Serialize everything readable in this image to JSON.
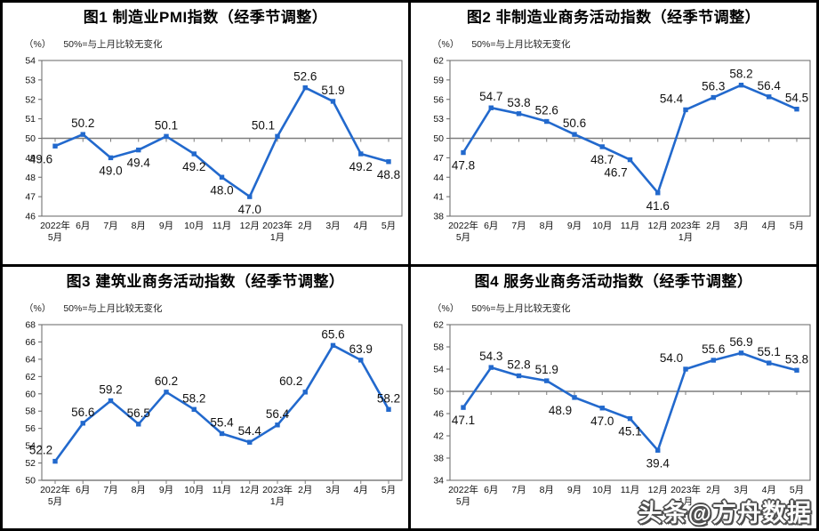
{
  "page": {
    "watermark": "头条@方舟数据"
  },
  "colors": {
    "line": "#2269cd",
    "axis": "#666666",
    "ref_line": "#7d7d7d",
    "text": "#111111"
  },
  "chart_data": [
    {
      "type": "line",
      "title": "图1 制造业PMI指数（经季节调整）",
      "unit": "（%）",
      "note": "50%=与上月比较无变化",
      "categories": [
        "2022年\n5月",
        "6月",
        "7月",
        "8月",
        "9月",
        "10月",
        "11月",
        "12月",
        "2023年\n1月",
        "2月",
        "3月",
        "4月",
        "5月"
      ],
      "values": [
        49.6,
        50.2,
        49.0,
        49.4,
        50.1,
        49.2,
        48.0,
        47.0,
        50.1,
        52.6,
        51.9,
        49.2,
        48.8
      ],
      "ylim": [
        46,
        54
      ],
      "ystep": 1,
      "ref_value": 50,
      "grid": false,
      "legend": false,
      "label_side": [
        "bl",
        "a",
        "b",
        "b",
        "a",
        "b",
        "b",
        "b",
        "al",
        "a",
        "a",
        "b",
        "b"
      ]
    },
    {
      "type": "line",
      "title": "图2 非制造业商务活动指数（经季节调整）",
      "unit": "（%）",
      "note": "50%=与上月比较无变化",
      "categories": [
        "2022年\n5月",
        "6月",
        "7月",
        "8月",
        "9月",
        "10月",
        "11月",
        "12月",
        "2023年\n1月",
        "2月",
        "3月",
        "4月",
        "5月"
      ],
      "values": [
        47.8,
        54.7,
        53.8,
        52.6,
        50.6,
        48.7,
        46.7,
        41.6,
        54.4,
        56.3,
        58.2,
        56.4,
        54.5
      ],
      "ylim": [
        38,
        62
      ],
      "ystep": 3,
      "ref_value": 50,
      "grid": false,
      "legend": false,
      "label_side": [
        "b",
        "a",
        "a",
        "a",
        "a",
        "b",
        "bl",
        "b",
        "al",
        "a",
        "a",
        "a",
        "a"
      ]
    },
    {
      "type": "line",
      "title": "图3 建筑业商务活动指数（经季节调整）",
      "unit": "（%）",
      "note": "50%=与上月比较无变化",
      "categories": [
        "2022年\n5月",
        "6月",
        "7月",
        "8月",
        "9月",
        "10月",
        "11月",
        "12月",
        "2023年\n1月",
        "2月",
        "3月",
        "4月",
        "5月"
      ],
      "values": [
        52.2,
        56.6,
        59.2,
        56.5,
        60.2,
        58.2,
        55.4,
        54.4,
        56.4,
        60.2,
        65.6,
        63.9,
        58.2
      ],
      "ylim": [
        50,
        68
      ],
      "ystep": 2,
      "ref_value": 50,
      "grid": false,
      "legend": false,
      "label_side": [
        "al",
        "a",
        "a",
        "a",
        "a",
        "a",
        "a",
        "a",
        "a",
        "al",
        "a",
        "a",
        "a"
      ]
    },
    {
      "type": "line",
      "title": "图4 服务业商务活动指数（经季节调整）",
      "unit": "（%）",
      "note": "50%=与上月比较无变化",
      "categories": [
        "2022年\n5月",
        "6月",
        "7月",
        "8月",
        "9月",
        "10月",
        "11月",
        "12月",
        "2023年\n1月",
        "2月",
        "3月",
        "4月",
        "5月"
      ],
      "values": [
        47.1,
        54.3,
        52.8,
        51.9,
        48.9,
        47.0,
        45.1,
        39.4,
        54.0,
        55.6,
        56.9,
        55.1,
        53.8
      ],
      "ylim": [
        34,
        62
      ],
      "ystep": 4,
      "ref_value": 50,
      "grid": false,
      "legend": false,
      "label_side": [
        "b",
        "a",
        "a",
        "a",
        "bl",
        "b",
        "b",
        "b",
        "al",
        "a",
        "a",
        "a",
        "a"
      ]
    }
  ]
}
